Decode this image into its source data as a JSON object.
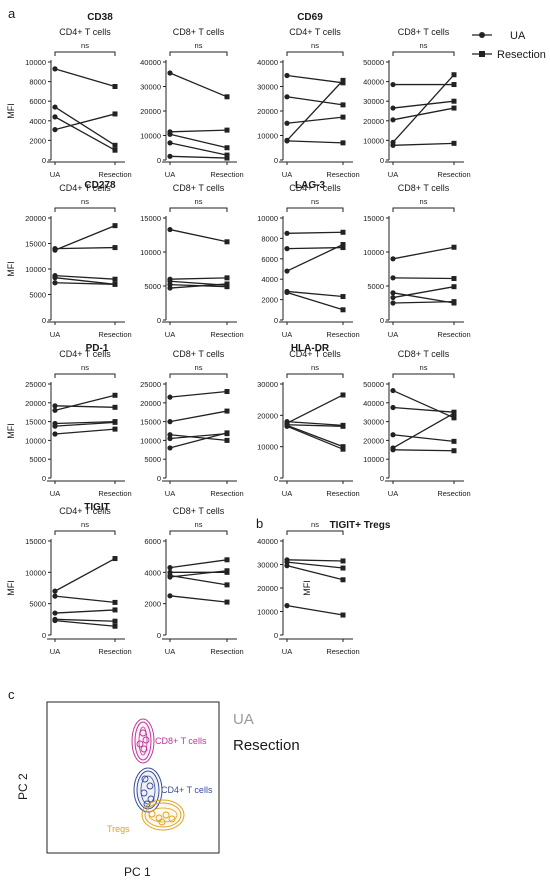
{
  "panel_labels": {
    "a": "a",
    "b": "b",
    "c": "c"
  },
  "legend": {
    "ua": "UA",
    "resection": "Resection"
  },
  "common": {
    "ylabel": "MFI",
    "xcats": [
      "UA",
      "Resection"
    ],
    "sig": "ns"
  },
  "chart_data": [
    {
      "type": "line",
      "marker_title": "CD38",
      "title": "CD4+ T cells",
      "ylabel": "MFI",
      "ylim": [
        0,
        10000
      ],
      "yticks": [
        0,
        2000,
        4000,
        6000,
        8000,
        10000
      ],
      "categories": [
        "UA",
        "Resection"
      ],
      "series": [
        {
          "values": [
            9300,
            7500
          ]
        },
        {
          "values": [
            5400,
            1500
          ]
        },
        {
          "values": [
            4400,
            1000
          ]
        },
        {
          "values": [
            3100,
            4700
          ]
        }
      ]
    },
    {
      "type": "line",
      "title": "CD8+ T cells",
      "ylim": [
        0,
        40000
      ],
      "yticks": [
        0,
        10000,
        20000,
        30000,
        40000
      ],
      "categories": [
        "UA",
        "Resection"
      ],
      "series": [
        {
          "values": [
            35500,
            25800
          ]
        },
        {
          "values": [
            11500,
            12200
          ]
        },
        {
          "values": [
            10500,
            5000
          ]
        },
        {
          "values": [
            7000,
            2000
          ]
        },
        {
          "values": [
            1500,
            800
          ]
        }
      ]
    },
    {
      "type": "line",
      "marker_title": "CD69",
      "title": "CD4+ T cells",
      "ylim": [
        0,
        40000
      ],
      "yticks": [
        0,
        10000,
        20000,
        30000,
        40000
      ],
      "categories": [
        "UA",
        "Resection"
      ],
      "series": [
        {
          "values": [
            34500,
            31500
          ]
        },
        {
          "values": [
            25800,
            22500
          ]
        },
        {
          "values": [
            15000,
            17500
          ]
        },
        {
          "values": [
            8000,
            32500
          ]
        },
        {
          "values": [
            7800,
            7000
          ]
        }
      ]
    },
    {
      "type": "line",
      "title": "CD8+ T cells",
      "ylim": [
        0,
        50000
      ],
      "yticks": [
        0,
        10000,
        20000,
        30000,
        40000,
        50000
      ],
      "categories": [
        "UA",
        "Resection"
      ],
      "series": [
        {
          "values": [
            38500,
            38500
          ]
        },
        {
          "values": [
            26500,
            30000
          ]
        },
        {
          "values": [
            20500,
            26500
          ]
        },
        {
          "values": [
            9000,
            43500
          ]
        },
        {
          "values": [
            7500,
            8500
          ]
        }
      ]
    },
    {
      "type": "line",
      "marker_title": "CD278",
      "title": "CD4+ T cells",
      "ylabel": "MFI",
      "ylim": [
        0,
        20000
      ],
      "yticks": [
        0,
        5000,
        10000,
        15000,
        20000
      ],
      "categories": [
        "UA",
        "Resection"
      ],
      "series": [
        {
          "values": [
            13700,
            18500
          ]
        },
        {
          "values": [
            14000,
            14200
          ]
        },
        {
          "values": [
            8700,
            8000
          ]
        },
        {
          "values": [
            8300,
            7000
          ]
        },
        {
          "values": [
            7300,
            7000
          ]
        }
      ]
    },
    {
      "type": "line",
      "title": "CD8+ T cells",
      "ylim": [
        0,
        15000
      ],
      "yticks": [
        0,
        5000,
        10000,
        15000
      ],
      "categories": [
        "UA",
        "Resection"
      ],
      "series": [
        {
          "values": [
            13300,
            11500
          ]
        },
        {
          "values": [
            6000,
            6200
          ]
        },
        {
          "values": [
            5700,
            5100
          ]
        },
        {
          "values": [
            5200,
            4900
          ]
        },
        {
          "values": [
            4700,
            5300
          ]
        }
      ]
    },
    {
      "type": "line",
      "marker_title": "LAG-3",
      "title": "CD4+ T cells",
      "ylim": [
        0,
        10000
      ],
      "yticks": [
        0,
        2000,
        4000,
        6000,
        8000,
        10000
      ],
      "categories": [
        "UA",
        "Resection"
      ],
      "series": [
        {
          "values": [
            8500,
            8600
          ]
        },
        {
          "values": [
            7000,
            7100
          ]
        },
        {
          "values": [
            4800,
            7400
          ]
        },
        {
          "values": [
            2800,
            2300
          ]
        },
        {
          "values": [
            2700,
            1000
          ]
        }
      ]
    },
    {
      "type": "line",
      "title": "CD8+ T cells",
      "ylim": [
        0,
        15000
      ],
      "yticks": [
        0,
        5000,
        10000,
        15000
      ],
      "categories": [
        "UA",
        "Resection"
      ],
      "series": [
        {
          "values": [
            9000,
            10700
          ]
        },
        {
          "values": [
            6200,
            6100
          ]
        },
        {
          "values": [
            4000,
            2500
          ]
        },
        {
          "values": [
            3300,
            4900
          ]
        },
        {
          "values": [
            2500,
            2700
          ]
        }
      ]
    },
    {
      "type": "line",
      "marker_title": "PD-1",
      "title": "CD4+ T cells",
      "ylabel": "MFI",
      "ylim": [
        0,
        25000
      ],
      "yticks": [
        0,
        5000,
        10000,
        15000,
        20000,
        25000
      ],
      "categories": [
        "UA",
        "Resection"
      ],
      "series": [
        {
          "values": [
            19200,
            18800
          ]
        },
        {
          "values": [
            18000,
            22000
          ]
        },
        {
          "values": [
            14500,
            15000
          ]
        },
        {
          "values": [
            13800,
            14800
          ]
        },
        {
          "values": [
            11700,
            13000
          ]
        }
      ]
    },
    {
      "type": "line",
      "title": "CD8+ T cells",
      "ylim": [
        0,
        25000
      ],
      "yticks": [
        0,
        5000,
        10000,
        15000,
        20000,
        25000
      ],
      "categories": [
        "UA",
        "Resection"
      ],
      "series": [
        {
          "values": [
            21500,
            23000
          ]
        },
        {
          "values": [
            15000,
            17800
          ]
        },
        {
          "values": [
            11500,
            10000
          ]
        },
        {
          "values": [
            10500,
            11800
          ]
        },
        {
          "values": [
            8000,
            12000
          ]
        }
      ]
    },
    {
      "type": "line",
      "marker_title": "HLA-DR",
      "title": "CD4+ T cells",
      "ylim": [
        0,
        30000
      ],
      "yticks": [
        0,
        10000,
        20000,
        30000
      ],
      "categories": [
        "UA",
        "Resection"
      ],
      "series": [
        {
          "values": [
            18000,
            16800
          ]
        },
        {
          "values": [
            17500,
            26500
          ]
        },
        {
          "values": [
            17000,
            16500
          ]
        },
        {
          "values": [
            16800,
            10000
          ]
        },
        {
          "values": [
            16500,
            9200
          ]
        }
      ]
    },
    {
      "type": "line",
      "title": "CD8+ T cells",
      "ylim": [
        0,
        50000
      ],
      "yticks": [
        0,
        10000,
        20000,
        30000,
        40000,
        50000
      ],
      "categories": [
        "UA",
        "Resection"
      ],
      "series": [
        {
          "values": [
            46500,
            32000
          ]
        },
        {
          "values": [
            37500,
            35000
          ]
        },
        {
          "values": [
            23000,
            19500
          ]
        },
        {
          "values": [
            16000,
            34500
          ]
        },
        {
          "values": [
            15000,
            14500
          ]
        }
      ]
    },
    {
      "type": "line",
      "marker_title": "TIGIT",
      "title": "CD4+ T cells",
      "ylabel": "MFI",
      "ylim": [
        0,
        15000
      ],
      "yticks": [
        0,
        5000,
        10000,
        15000
      ],
      "categories": [
        "UA",
        "Resection"
      ],
      "series": [
        {
          "values": [
            7000,
            12200
          ]
        },
        {
          "values": [
            6200,
            5200
          ]
        },
        {
          "values": [
            3500,
            4000
          ]
        },
        {
          "values": [
            2500,
            2200
          ]
        },
        {
          "values": [
            2300,
            1400
          ]
        }
      ]
    },
    {
      "type": "line",
      "title": "CD8+ T cells",
      "ylim": [
        0,
        6000
      ],
      "yticks": [
        0,
        2000,
        4000,
        6000
      ],
      "categories": [
        "UA",
        "Resection"
      ],
      "series": [
        {
          "values": [
            4300,
            4800
          ]
        },
        {
          "values": [
            4000,
            4000
          ]
        },
        {
          "values": [
            3800,
            3200
          ]
        },
        {
          "values": [
            3700,
            4100
          ]
        },
        {
          "values": [
            2500,
            2100
          ]
        }
      ]
    },
    {
      "type": "line",
      "marker_title": "TIGIT+ Tregs",
      "title": "",
      "ylabel": "MFI",
      "ylim": [
        0,
        40000
      ],
      "yticks": [
        0,
        10000,
        20000,
        30000,
        40000
      ],
      "categories": [
        "UA",
        "Resection"
      ],
      "series": [
        {
          "values": [
            32000,
            31500
          ]
        },
        {
          "values": [
            31000,
            28500
          ]
        },
        {
          "values": [
            29500,
            23500
          ]
        },
        {
          "values": [
            12500,
            8500
          ]
        }
      ]
    }
  ],
  "pca": {
    "xlabel": "PC 1",
    "ylabel": "PC 2",
    "legend_ua": "UA",
    "legend_resection": "Resection",
    "clusters": [
      {
        "name": "CD8+ T cells",
        "color": "#c0359a"
      },
      {
        "name": "CD4+ T cells",
        "color": "#3a4d9c"
      },
      {
        "name": "Tregs",
        "color": "#e0a21a"
      }
    ]
  }
}
